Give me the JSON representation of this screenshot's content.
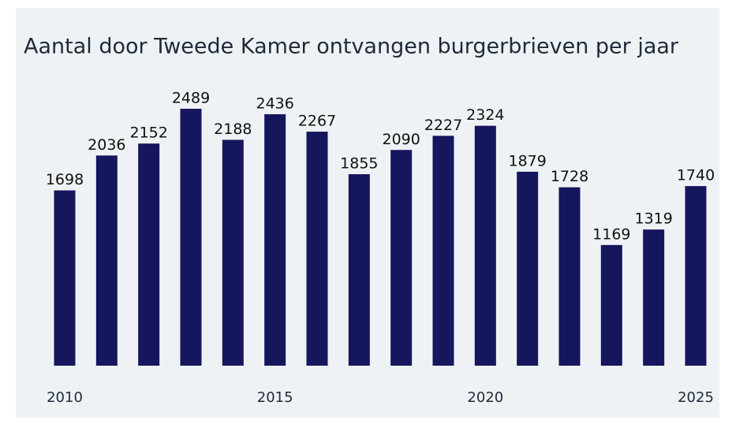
{
  "chart_data": {
    "type": "bar",
    "title": "Aantal door Tweede Kamer ontvangen burgerbrieven per jaar",
    "categories": [
      "2010",
      null,
      null,
      null,
      null,
      "2015",
      null,
      null,
      null,
      null,
      "2020",
      null,
      null,
      null,
      null,
      "2025"
    ],
    "values": [
      1698,
      2036,
      2152,
      2489,
      2188,
      2436,
      2267,
      1855,
      2090,
      2227,
      2324,
      1879,
      1728,
      1169,
      1319,
      1740
    ],
    "color": "#15165c"
  }
}
